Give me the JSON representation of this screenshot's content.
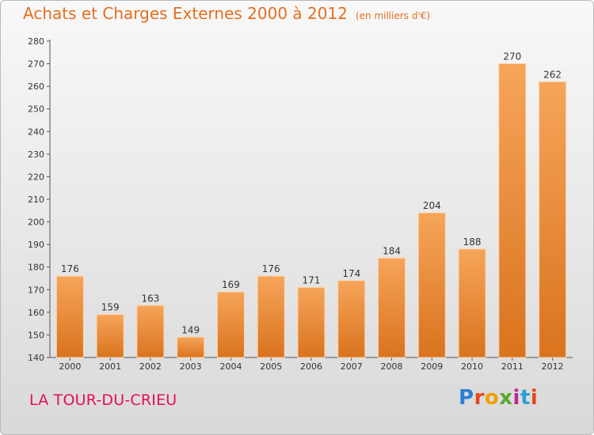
{
  "header": {
    "title": "Achats et Charges Externes 2000 à 2012",
    "unit": "(en milliers d'€)"
  },
  "footer": {
    "town": "LA TOUR-DU-CRIEU",
    "logo_letters": [
      "P",
      "r",
      "o",
      "x",
      "i",
      "t",
      "i"
    ],
    "logo_colors": [
      "#2a7fd4",
      "#e8471c",
      "#f0a000",
      "#58a82c",
      "#c0268f",
      "#2a9fd4",
      "#e8471c"
    ]
  },
  "colors": {
    "bar_light": "#f6a55a",
    "bar_dark": "#d9731e",
    "accent": "#e46f1f"
  },
  "chart_data": {
    "type": "bar",
    "categories": [
      "2000",
      "2001",
      "2002",
      "2003",
      "2004",
      "2005",
      "2006",
      "2007",
      "2008",
      "2009",
      "2010",
      "2011",
      "2012"
    ],
    "values": [
      176,
      159,
      163,
      149,
      169,
      176,
      171,
      174,
      184,
      204,
      188,
      270,
      262
    ],
    "yticks": [
      140,
      150,
      160,
      170,
      180,
      190,
      200,
      210,
      220,
      230,
      240,
      250,
      260,
      270,
      280
    ],
    "ylim": [
      140,
      280
    ],
    "grid": false,
    "legend": "none"
  }
}
